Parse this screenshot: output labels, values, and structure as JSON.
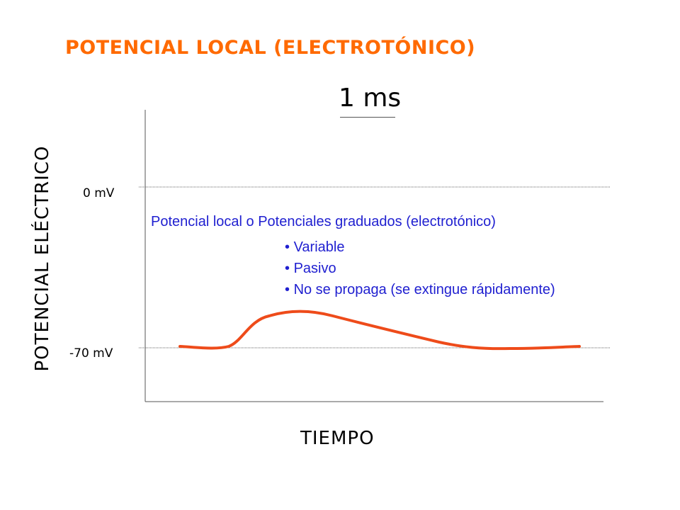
{
  "title": "POTENCIAL LOCAL (ELECTROTÓNICO)",
  "scale": {
    "label": "1 ms"
  },
  "axes": {
    "ylabel": "POTENCIAL ELÉCTRICO",
    "xlabel": "TIEMPO",
    "ticks": {
      "zero": "0 mV",
      "rest": "-70 mV"
    }
  },
  "annotation": {
    "title": "Potencial local o Potenciales graduados (electrotónico)",
    "items": [
      "Variable",
      "Pasivo",
      "No se propaga (se extingue rápidamente)"
    ]
  },
  "colors": {
    "title": "#ff6a00",
    "curve": "#ee4b1a",
    "annotation": "#1f1fd0"
  }
}
